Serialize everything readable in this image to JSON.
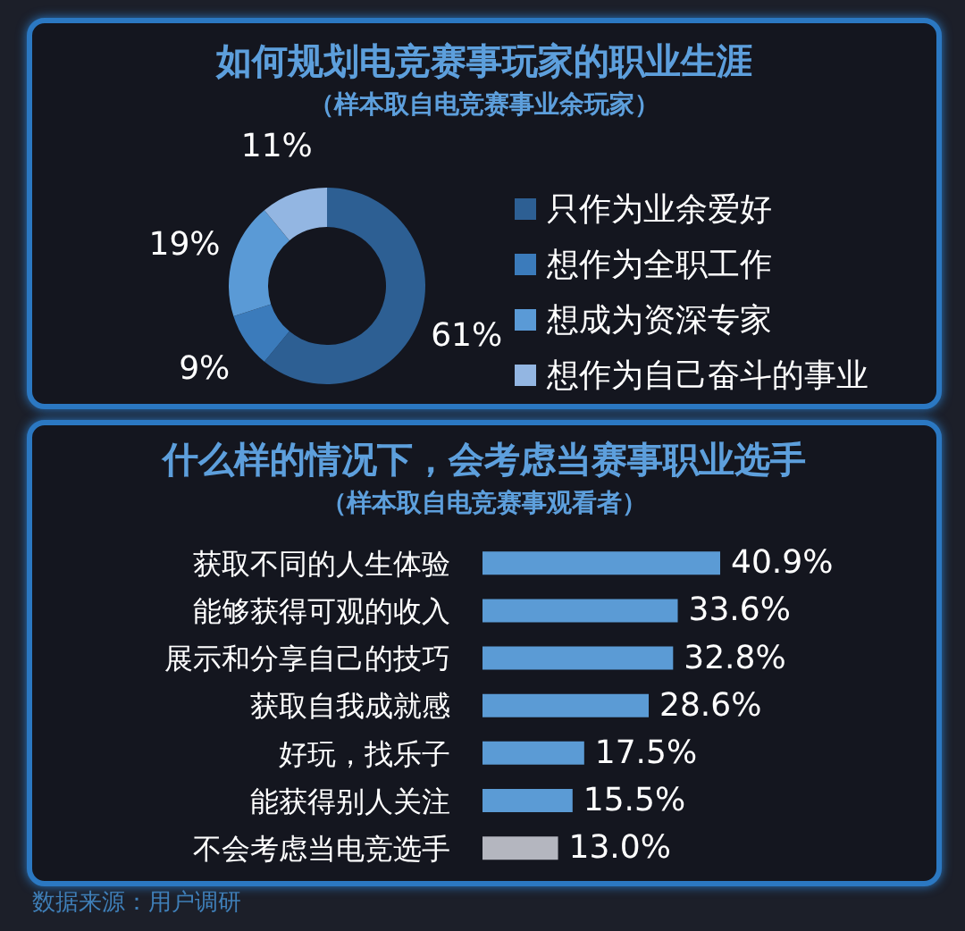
{
  "chart_data": [
    {
      "type": "donut",
      "title": "如何规划电竞赛事玩家的职业生涯",
      "subtitle": "（样本取自电竞赛事业余玩家）",
      "categories": [
        "只作为业余爱好",
        "想作为全职工作",
        "想成为资深专家",
        "想作为自己奋斗的事业"
      ],
      "values": [
        61,
        9,
        19,
        11
      ],
      "colors": [
        "#2d5f93",
        "#3b7bbb",
        "#5a9ad6",
        "#93b6e2"
      ],
      "value_labels": [
        "61%",
        "9%",
        "19%",
        "11%"
      ],
      "legend": "right"
    },
    {
      "type": "bar",
      "orientation": "horizontal",
      "title": "什么样的情况下，会考虑当赛事职业选手",
      "subtitle": "（样本取自电竞赛事观看者）",
      "categories": [
        "获取不同的人生体验",
        "能够获得可观的收入",
        "展示和分享自己的技巧",
        "获取自我成就感",
        "好玩，找乐子",
        "能获得别人关注",
        "不会考虑当电竞选手"
      ],
      "values": [
        40.9,
        33.6,
        32.8,
        28.6,
        17.5,
        15.5,
        13.0
      ],
      "colors": [
        "#5b9bd5",
        "#5b9bd5",
        "#5b9bd5",
        "#5b9bd5",
        "#5b9bd5",
        "#5b9bd5",
        "#b4b6bf"
      ],
      "value_labels": [
        "40.9%",
        "33.6%",
        "32.8%",
        "28.6%",
        "17.5%",
        "15.5%",
        "13.0%"
      ],
      "annotations": [
        "数据来源：用户调研"
      ]
    }
  ]
}
